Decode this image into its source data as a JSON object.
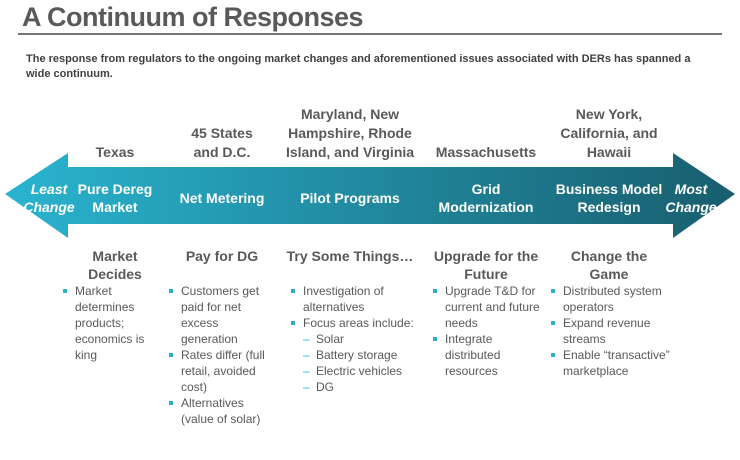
{
  "title": "A Continuum of Responses",
  "intro": "The response from regulators to the ongoing market changes and aforementioned issues associated with DERs has spanned a wide continuum.",
  "colors": {
    "arrow_left": "#2ab4d0",
    "arrow_right": "#185e6e",
    "bullet": "#2ab0cc"
  },
  "ends": {
    "left": "Least Change",
    "right": "Most Change"
  },
  "columns": [
    {
      "region": "Texas",
      "stage": "Pure Dereg Market",
      "subtitle": "Market Decides",
      "bullets": [
        {
          "t": "Market determines products; economics is king"
        }
      ]
    },
    {
      "region": "45 States and D.C.",
      "stage": "Net Metering",
      "subtitle": "Pay for DG",
      "bullets": [
        {
          "t": "Customers get paid for net excess generation"
        },
        {
          "t": "Rates differ (full retail, avoided cost)"
        },
        {
          "t": "Alternatives (value of solar)"
        }
      ]
    },
    {
      "region": "Maryland, New Hampshire, Rhode Island, and Virginia",
      "stage": "Pilot Programs",
      "subtitle": "Try Some Things…",
      "bullets": [
        {
          "t": "Investigation of alternatives"
        },
        {
          "t": "Focus areas include:"
        },
        {
          "t": "Solar",
          "d": 1
        },
        {
          "t": "Battery storage",
          "d": 1
        },
        {
          "t": "Electric vehicles",
          "d": 1
        },
        {
          "t": "DG",
          "d": 1
        }
      ]
    },
    {
      "region": "Massachusetts",
      "stage": "Grid Modernization",
      "subtitle": "Upgrade for the Future",
      "bullets": [
        {
          "t": "Upgrade T&D for current and future needs"
        },
        {
          "t": "Integrate distributed resources"
        }
      ]
    },
    {
      "region": "New York, California, and Hawaii",
      "stage": "Business Model Redesign",
      "subtitle": "Change the Game",
      "bullets": [
        {
          "t": "Distributed system operators"
        },
        {
          "t": "Expand revenue streams"
        },
        {
          "t": "Enable “transactive” marketplace"
        }
      ]
    }
  ]
}
